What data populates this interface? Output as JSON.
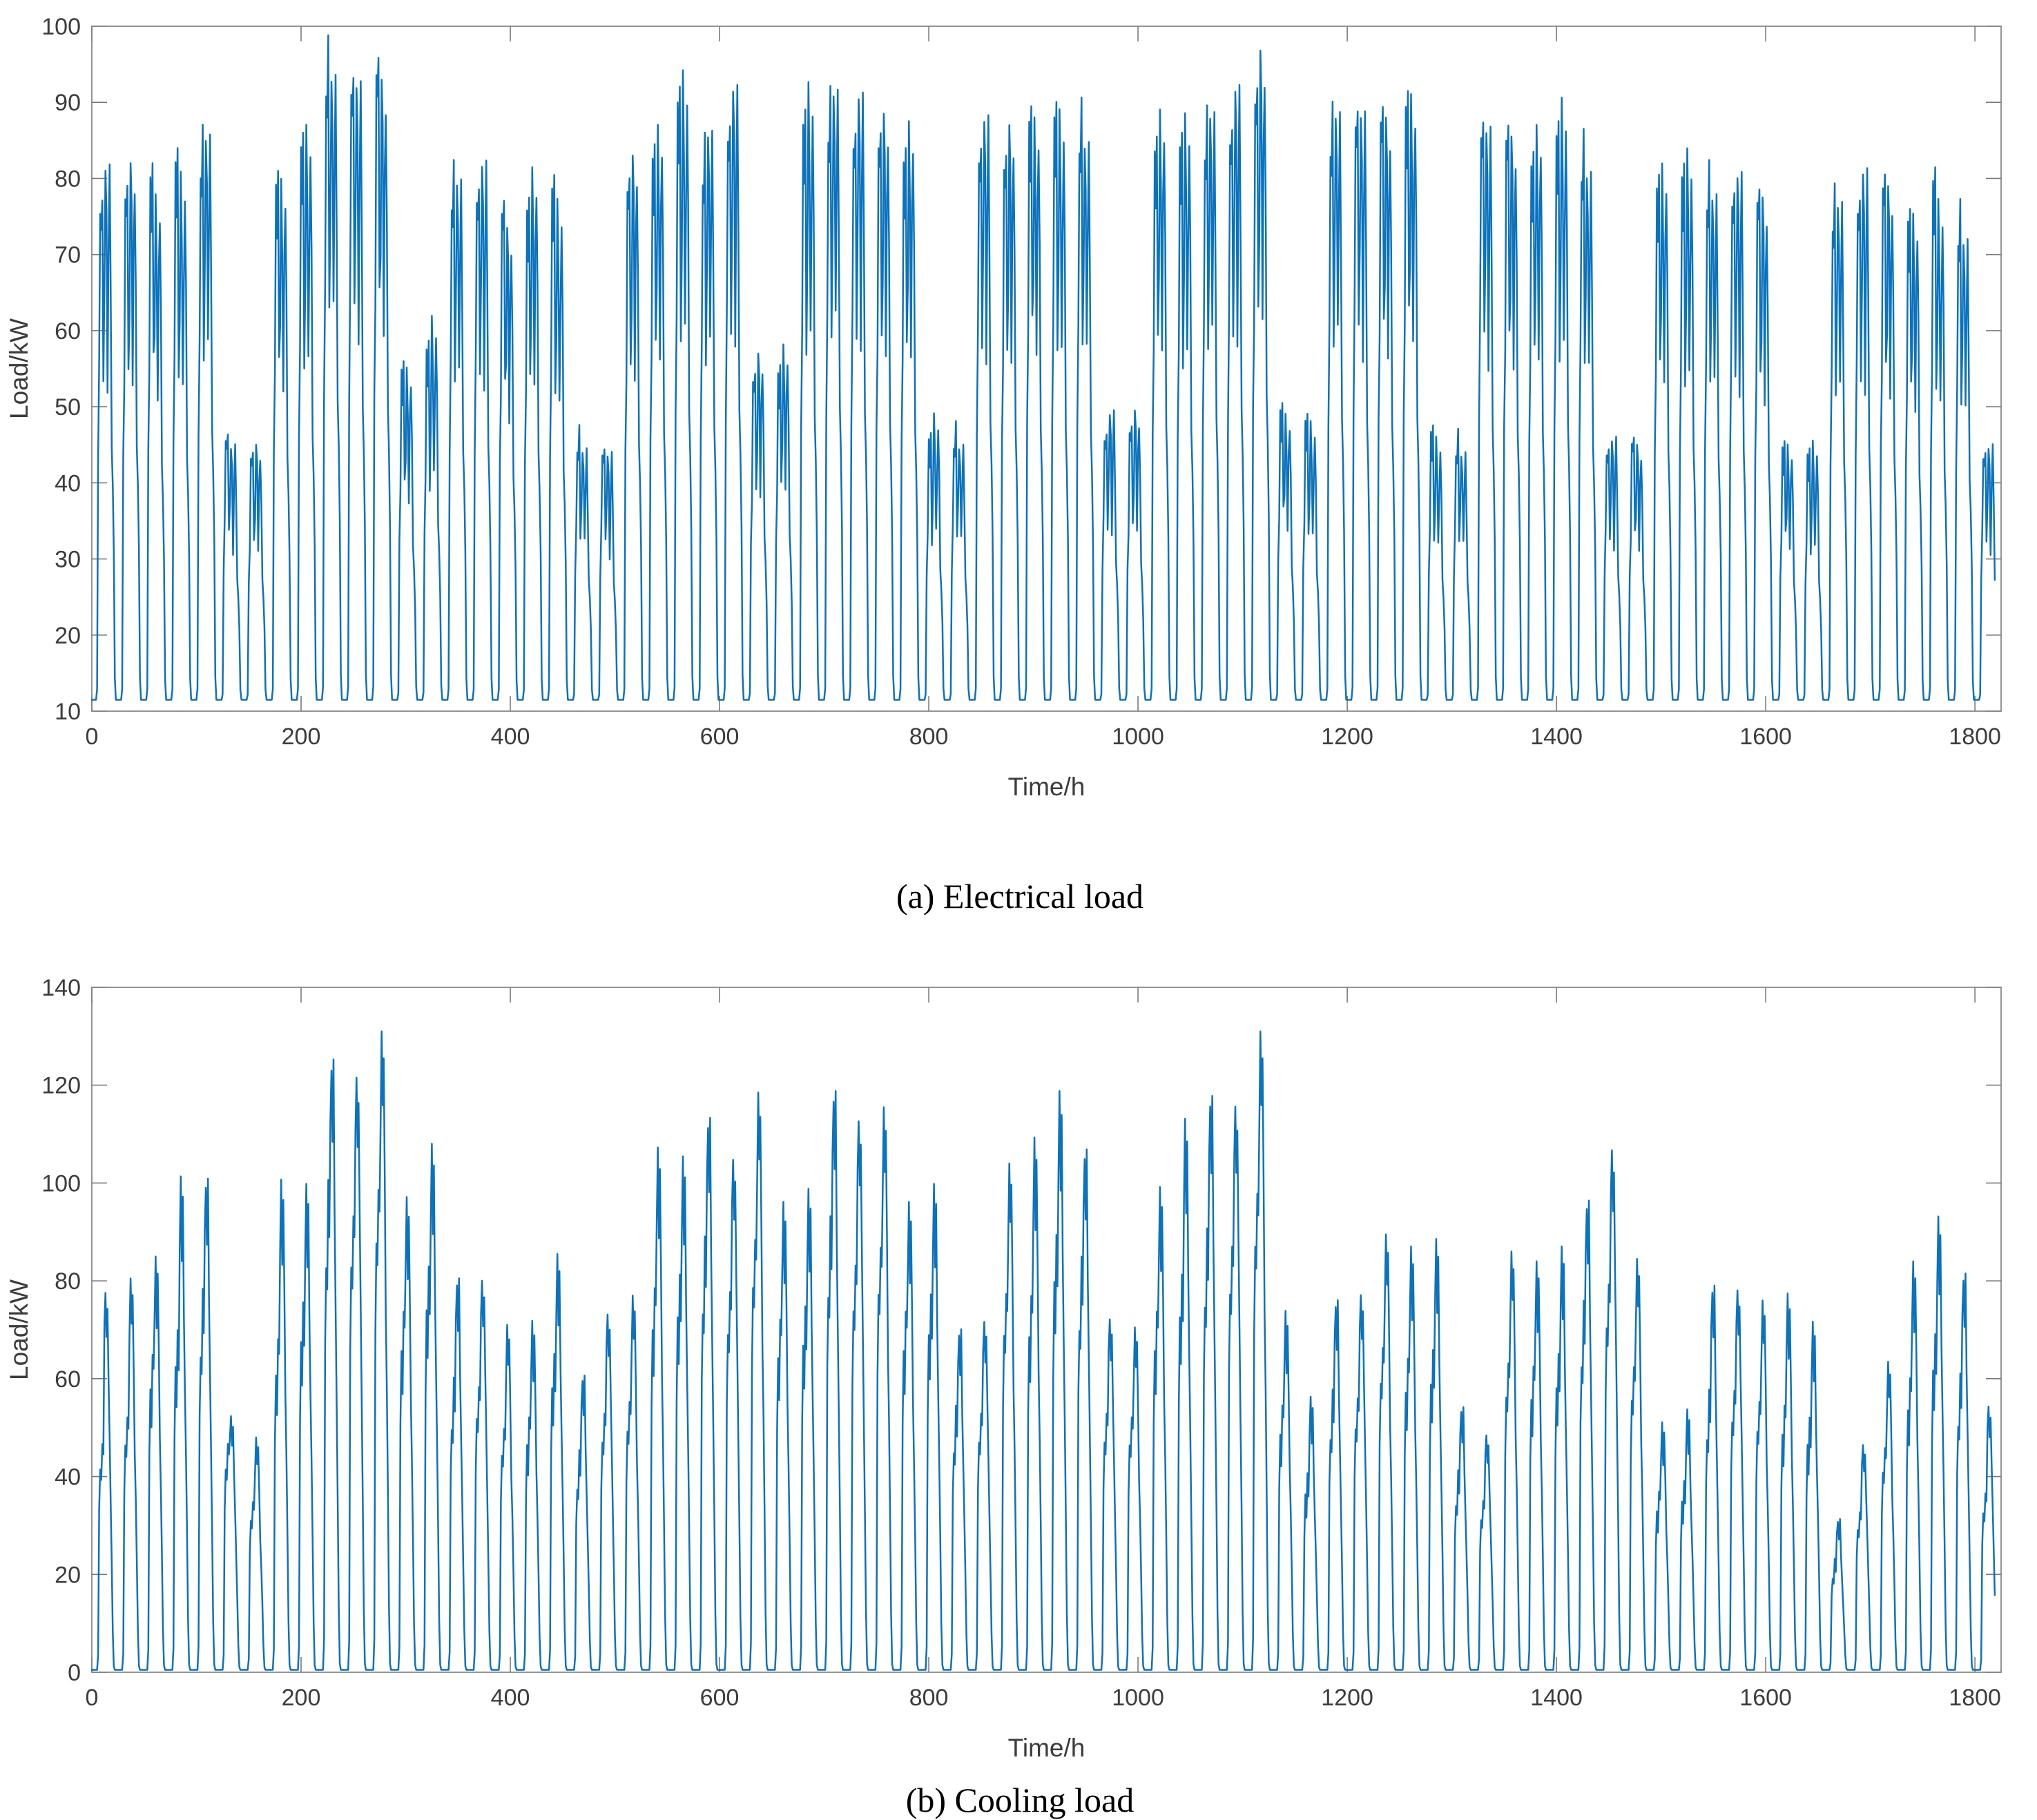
{
  "figure": {
    "background": "#ffffff",
    "axis_color": "#7a7a7a",
    "tick_label_color": "#3c3c3c",
    "line_color": "#0b72bd"
  },
  "chart_data": [
    {
      "type": "line",
      "title": "",
      "caption": "(a) Electrical load",
      "xlabel": "Time/h",
      "ylabel": "Load/kW",
      "xlim": [
        0,
        1825
      ],
      "ylim": [
        10,
        100
      ],
      "x_ticks": [
        0,
        200,
        400,
        600,
        800,
        1000,
        1200,
        1400,
        1600,
        1800
      ],
      "y_ticks": [
        10,
        20,
        30,
        40,
        50,
        60,
        70,
        80,
        90,
        100
      ],
      "grid": false,
      "legend": "none",
      "line_color": "#0b72bd",
      "total_hours": 1820,
      "day_length_hours": 24,
      "night_base": 11.5,
      "day_shape_weights": [
        0,
        0,
        0,
        0,
        0,
        0.02,
        0.47,
        0.63,
        0.96,
        0.9,
        1.0,
        0.62,
        0.74,
        1.0,
        0.9,
        0.6,
        0.84,
        0.97,
        0.78,
        0.47,
        0.4,
        0.28,
        0.04,
        0
      ],
      "daily_peaks_am_pm": [
        [
          79,
          82
        ],
        [
          80,
          82
        ],
        [
          82,
          77
        ],
        [
          83,
          79
        ],
        [
          85,
          87
        ],
        [
          47.5,
          45
        ],
        [
          44.5,
          45
        ],
        [
          81,
          79
        ],
        [
          85,
          85
        ],
        [
          96.5,
          95
        ],
        [
          95.5,
          93
        ],
        [
          97,
          93
        ],
        [
          56,
          54.5
        ],
        [
          58,
          60.5
        ],
        [
          80.5,
          81
        ],
        [
          80.5,
          82.5
        ],
        [
          78,
          73.5
        ],
        [
          77.5,
          80.5
        ],
        [
          79.5,
          75.5
        ],
        [
          46.5,
          45
        ],
        [
          45.5,
          44
        ],
        [
          81,
          83
        ],
        [
          84.5,
          86
        ],
        [
          91,
          92
        ],
        [
          84,
          87.5
        ],
        [
          89,
          92.5
        ],
        [
          55,
          57
        ],
        [
          55.5,
          57.5
        ],
        [
          88,
          90.5
        ],
        [
          90,
          93
        ],
        [
          88,
          91.5
        ],
        [
          87,
          88.5
        ],
        [
          84,
          86.5
        ],
        [
          46,
          48
        ],
        [
          47,
          45.5
        ],
        [
          86,
          88.5
        ],
        [
          84,
          87
        ],
        [
          89.5,
          87
        ],
        [
          89,
          87
        ],
        [
          88.5,
          86
        ],
        [
          47.5,
          49.5
        ],
        [
          48,
          49.5
        ],
        [
          85.5,
          88
        ],
        [
          85,
          86.5
        ],
        [
          87.5,
          90
        ],
        [
          88.5,
          92.5
        ],
        [
          93,
          96.8
        ],
        [
          50.5,
          48.5
        ],
        [
          48.5,
          47
        ],
        [
          88,
          90
        ],
        [
          91,
          89
        ],
        [
          90.5,
          88
        ],
        [
          91.5,
          90
        ],
        [
          47,
          45
        ],
        [
          46,
          44.5
        ],
        [
          89.5,
          87
        ],
        [
          88,
          85.5
        ],
        [
          83.5,
          86
        ],
        [
          86.5,
          88.5
        ],
        [
          84.5,
          82
        ],
        [
          45.5,
          46
        ],
        [
          46.5,
          45
        ],
        [
          80.5,
          81
        ],
        [
          81,
          82
        ],
        [
          80.5,
          79
        ],
        [
          80,
          81
        ],
        [
          79.5,
          77.5
        ],
        [
          45.5,
          44.5
        ],
        [
          44,
          44.5
        ],
        [
          77.5,
          78
        ],
        [
          79,
          81.5
        ],
        [
          81.5,
          79
        ],
        [
          76,
          74.5
        ],
        [
          80.5,
          75.5
        ],
        [
          75.5,
          73
        ],
        [
          45,
          45
        ]
      ]
    },
    {
      "type": "line",
      "title": "",
      "caption": "(b) Cooling load",
      "xlabel": "Time/h",
      "ylabel": "Load/kW",
      "xlim": [
        0,
        1825
      ],
      "ylim": [
        0,
        140
      ],
      "x_ticks": [
        0,
        200,
        400,
        600,
        800,
        1000,
        1200,
        1400,
        1600,
        1800
      ],
      "y_ticks": [
        0,
        20,
        40,
        60,
        80,
        100,
        120,
        140
      ],
      "grid": false,
      "legend": "none",
      "line_color": "#0b72bd",
      "total_hours": 1820,
      "day_length_hours": 24,
      "night_base": 0.5,
      "day_shape_weights": [
        0,
        0,
        0,
        0,
        0,
        0,
        0.05,
        0.55,
        0.7,
        0.64,
        0.8,
        0.74,
        0.88,
        1.0,
        0.86,
        0.97,
        0.76,
        0.58,
        0.44,
        0.28,
        0.1,
        0.01,
        0,
        0
      ],
      "daily_peaks_am_pm": [
        [
          60,
          78.5
        ],
        [
          66,
          80.5
        ],
        [
          81,
          84
        ],
        [
          86,
          99
        ],
        [
          95,
          101.5
        ],
        [
          60,
          53
        ],
        [
          44,
          48
        ],
        [
          85,
          99.5
        ],
        [
          93,
          97.5
        ],
        [
          122,
          126
        ],
        [
          120,
          123
        ],
        [
          125,
          131
        ],
        [
          92,
          96
        ],
        [
          102,
          105.5
        ],
        [
          73,
          81
        ],
        [
          75,
          81
        ],
        [
          63,
          71
        ],
        [
          65,
          71
        ],
        [
          80,
          83.5
        ],
        [
          55,
          61
        ],
        [
          68,
          74
        ],
        [
          70,
          77
        ],
        [
          98,
          106
        ],
        [
          100,
          103
        ],
        [
          108,
          114
        ],
        [
          100,
          106
        ],
        [
          112,
          118.5
        ],
        [
          90,
          95
        ],
        [
          92,
          96.5
        ],
        [
          113,
          119.5
        ],
        [
          107,
          114
        ],
        [
          110,
          115.5
        ],
        [
          92,
          95
        ],
        [
          95,
          97.5
        ],
        [
          66,
          70.5
        ],
        [
          68,
          72.5
        ],
        [
          98,
          104
        ],
        [
          96,
          108
        ],
        [
          110,
          116
        ],
        [
          103,
          107.5
        ],
        [
          68,
          73
        ],
        [
          66,
          70.5
        ],
        [
          92,
          98
        ],
        [
          100,
          110.5
        ],
        [
          110,
          118.5
        ],
        [
          112,
          117
        ],
        [
          124,
          131
        ],
        [
          68,
          73
        ],
        [
          50,
          55
        ],
        [
          70,
          76.5
        ],
        [
          72,
          78
        ],
        [
          84,
          89.5
        ],
        [
          80,
          86
        ],
        [
          81,
          86.5
        ],
        [
          50,
          54.5
        ],
        [
          45,
          49
        ],
        [
          80,
          86
        ],
        [
          78,
          83
        ],
        [
          80,
          85
        ],
        [
          92,
          97
        ],
        [
          102,
          108
        ],
        [
          79,
          84.5
        ],
        [
          46,
          50.5
        ],
        [
          48,
          52.5
        ],
        [
          70,
          79.5
        ],
        [
          74,
          79
        ],
        [
          70,
          76
        ],
        [
          68,
          76.5
        ],
        [
          64,
          70
        ],
        [
          28,
          31.5
        ],
        [
          42,
          47
        ],
        [
          58,
          63.5
        ],
        [
          75,
          83
        ],
        [
          85,
          91
        ],
        [
          74,
          82
        ],
        [
          47,
          55
        ]
      ]
    }
  ]
}
